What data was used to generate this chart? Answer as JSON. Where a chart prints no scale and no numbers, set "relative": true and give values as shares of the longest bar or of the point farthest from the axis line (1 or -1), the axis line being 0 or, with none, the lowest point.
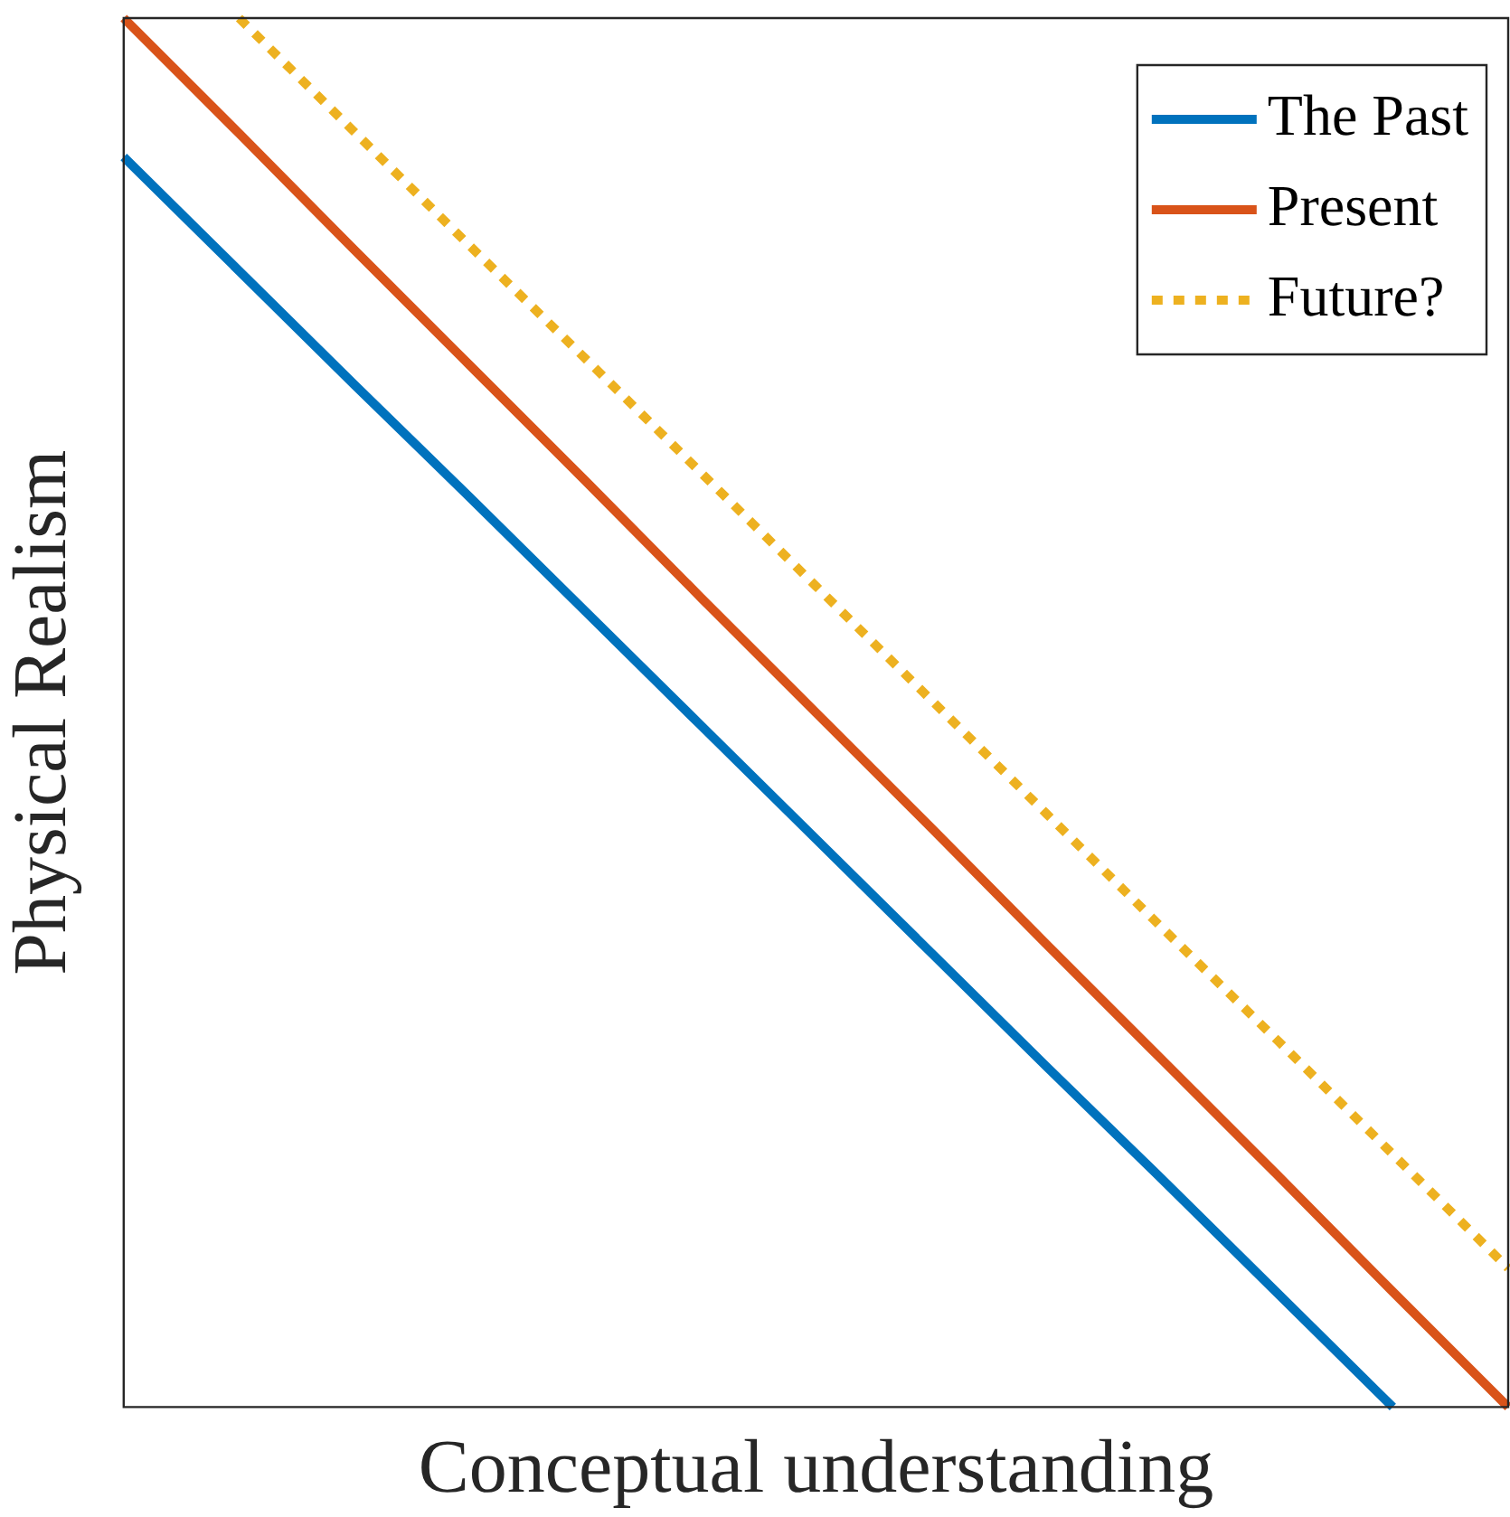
{
  "chart_data": {
    "type": "line",
    "relative": true,
    "xlabel": "Conceptual understanding",
    "ylabel": "Physical Realism",
    "legend": "top right",
    "categories": [
      null,
      null,
      null,
      null,
      null,
      null,
      null,
      null,
      null,
      null,
      null,
      null,
      null
    ],
    "series": [
      {
        "name": "The Past",
        "color": "#0072bd",
        "values": [
          0.9,
          0.818,
          0.736,
          0.655,
          0.573,
          0.491,
          0.409,
          0.327,
          0.245,
          0.164,
          0.082,
          0,
          null
        ],
        "line_style": "solid"
      },
      {
        "name": "Present",
        "color": "#d95319",
        "values": [
          1,
          0.917,
          0.833,
          0.75,
          0.667,
          0.583,
          0.5,
          0.417,
          0.333,
          0.25,
          0.167,
          0.083,
          0
        ],
        "line_style": "solid"
      },
      {
        "name": "Future?",
        "color": "#edb120",
        "values": [
          null,
          1,
          0.918,
          0.836,
          0.755,
          0.673,
          0.591,
          0.509,
          0.427,
          0.345,
          0.264,
          0.182,
          0.1
        ],
        "line_style": "dotted"
      }
    ]
  }
}
